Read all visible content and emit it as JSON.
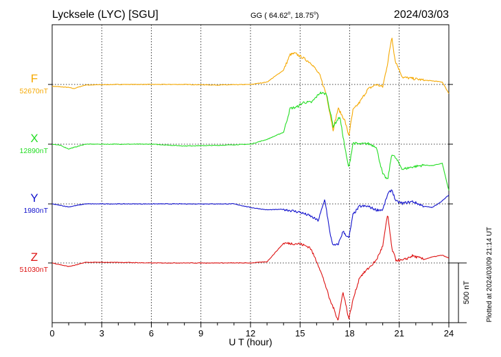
{
  "header": {
    "station": "Lycksele (LYC)  [SGU]",
    "coords_prefix": "GG ( 64.62",
    "coords_mid": ",  18.75",
    "coords_suffix": ")",
    "degree": "o",
    "date": "2024/03/03"
  },
  "footer": {
    "plotted": "Plotted at 2024/03/09 21:14 UT"
  },
  "chart_data": {
    "type": "line",
    "xlabel": "U T (hour)",
    "xlim": [
      0,
      24
    ],
    "xticks": [
      0,
      3,
      6,
      9,
      12,
      15,
      18,
      21,
      24
    ],
    "scale_label": "500 nT",
    "scale_nT": 500,
    "grid": true,
    "series": [
      {
        "name": "F",
        "baseline_label": "52670nT",
        "baseline_nT": 52670,
        "color": "#f5a800",
        "points": [
          [
            0,
            -15
          ],
          [
            1,
            -25
          ],
          [
            1.3,
            -35
          ],
          [
            2,
            -5
          ],
          [
            4,
            0
          ],
          [
            6,
            0
          ],
          [
            8,
            0
          ],
          [
            10,
            -5
          ],
          [
            12,
            0
          ],
          [
            13,
            20
          ],
          [
            14,
            120
          ],
          [
            14.4,
            250
          ],
          [
            14.7,
            260
          ],
          [
            15.2,
            220
          ],
          [
            15.7,
            175
          ],
          [
            16.2,
            75
          ],
          [
            16.6,
            -90
          ],
          [
            17.0,
            -380
          ],
          [
            17.3,
            -200
          ],
          [
            17.7,
            -300
          ],
          [
            17.95,
            -430
          ],
          [
            18.2,
            -215
          ],
          [
            18.6,
            -150
          ],
          [
            19.1,
            -40
          ],
          [
            19.6,
            0
          ],
          [
            20.0,
            -20
          ],
          [
            20.3,
            180
          ],
          [
            20.55,
            400
          ],
          [
            20.75,
            200
          ],
          [
            21.2,
            60
          ],
          [
            21.8,
            50
          ],
          [
            22.5,
            35
          ],
          [
            23.0,
            30
          ],
          [
            23.6,
            20
          ],
          [
            24,
            -75
          ]
        ]
      },
      {
        "name": "X",
        "baseline_label": "12890nT",
        "baseline_nT": 12890,
        "color": "#22dd22",
        "points": [
          [
            0,
            0
          ],
          [
            0.5,
            -10
          ],
          [
            1,
            -40
          ],
          [
            1.5,
            -20
          ],
          [
            2,
            0
          ],
          [
            4,
            0
          ],
          [
            6,
            0
          ],
          [
            8,
            -15
          ],
          [
            10,
            -10
          ],
          [
            12,
            0
          ],
          [
            13,
            40
          ],
          [
            14,
            100
          ],
          [
            14.4,
            300
          ],
          [
            14.8,
            310
          ],
          [
            15.2,
            350
          ],
          [
            15.7,
            350
          ],
          [
            16.2,
            430
          ],
          [
            16.6,
            420
          ],
          [
            17.0,
            150
          ],
          [
            17.4,
            230
          ],
          [
            17.8,
            -100
          ],
          [
            17.95,
            -200
          ],
          [
            18.2,
            10
          ],
          [
            18.6,
            0
          ],
          [
            19.1,
            5
          ],
          [
            19.6,
            -20
          ],
          [
            20.0,
            -250
          ],
          [
            20.3,
            -300
          ],
          [
            20.55,
            -80
          ],
          [
            20.8,
            -120
          ],
          [
            21.2,
            -210
          ],
          [
            21.8,
            -190
          ],
          [
            22.5,
            -175
          ],
          [
            23.0,
            -180
          ],
          [
            23.6,
            -160
          ],
          [
            24,
            -390
          ]
        ]
      },
      {
        "name": "Y",
        "baseline_label": "1980nT",
        "baseline_nT": 1980,
        "color": "#1111cc",
        "points": [
          [
            0,
            0
          ],
          [
            1,
            -25
          ],
          [
            2,
            0
          ],
          [
            4,
            0
          ],
          [
            6,
            0
          ],
          [
            8,
            0
          ],
          [
            10,
            0
          ],
          [
            11,
            0
          ],
          [
            12,
            -30
          ],
          [
            13,
            -50
          ],
          [
            14,
            -45
          ],
          [
            15,
            -70
          ],
          [
            15.6,
            -100
          ],
          [
            16.1,
            -140
          ],
          [
            16.5,
            40
          ],
          [
            16.8,
            -240
          ],
          [
            17.0,
            -350
          ],
          [
            17.3,
            -340
          ],
          [
            17.6,
            -230
          ],
          [
            17.95,
            -290
          ],
          [
            18.2,
            -90
          ],
          [
            18.6,
            -20
          ],
          [
            19.1,
            -20
          ],
          [
            19.6,
            -50
          ],
          [
            20.0,
            -50
          ],
          [
            20.3,
            80
          ],
          [
            20.55,
            120
          ],
          [
            20.8,
            20
          ],
          [
            21.2,
            5
          ],
          [
            21.8,
            20
          ],
          [
            22.5,
            -20
          ],
          [
            23.0,
            -30
          ],
          [
            23.6,
            25
          ],
          [
            24,
            75
          ]
        ]
      },
      {
        "name": "Z",
        "baseline_label": "51030nT",
        "baseline_nT": 51030,
        "color": "#dd1111",
        "points": [
          [
            0,
            0
          ],
          [
            1,
            -30
          ],
          [
            1.5,
            -15
          ],
          [
            2,
            5
          ],
          [
            4,
            5
          ],
          [
            6,
            0
          ],
          [
            8,
            0
          ],
          [
            10,
            0
          ],
          [
            12,
            0
          ],
          [
            13,
            10
          ],
          [
            14,
            165
          ],
          [
            15,
            160
          ],
          [
            15.6,
            130
          ],
          [
            16.1,
            -15
          ],
          [
            16.5,
            -170
          ],
          [
            16.8,
            -310
          ],
          [
            17.0,
            -370
          ],
          [
            17.3,
            -480
          ],
          [
            17.6,
            -240
          ],
          [
            17.95,
            -470
          ],
          [
            18.2,
            -310
          ],
          [
            18.6,
            -120
          ],
          [
            19.1,
            -50
          ],
          [
            19.6,
            20
          ],
          [
            20.0,
            140
          ],
          [
            20.3,
            410
          ],
          [
            20.55,
            120
          ],
          [
            20.8,
            25
          ],
          [
            21.2,
            20
          ],
          [
            21.8,
            60
          ],
          [
            22.5,
            30
          ],
          [
            23.0,
            50
          ],
          [
            23.6,
            65
          ],
          [
            24,
            40
          ]
        ]
      }
    ]
  }
}
